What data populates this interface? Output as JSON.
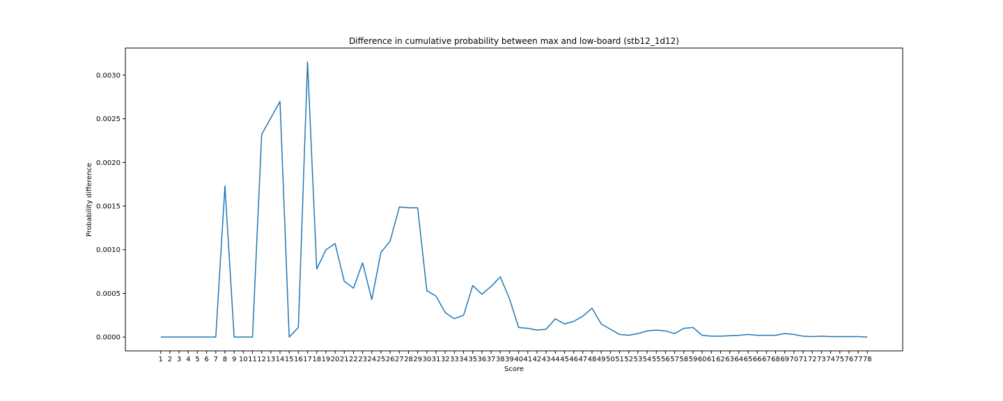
{
  "chart_data": {
    "type": "line",
    "title": "Difference in cumulative probability between max and low-board (stb12_1d12)",
    "xlabel": "Score",
    "ylabel": "Probability difference",
    "x": [
      1,
      2,
      3,
      4,
      5,
      6,
      7,
      8,
      9,
      10,
      11,
      12,
      13,
      14,
      15,
      16,
      17,
      18,
      19,
      20,
      21,
      22,
      23,
      24,
      25,
      26,
      27,
      28,
      29,
      30,
      31,
      32,
      33,
      34,
      35,
      36,
      37,
      38,
      39,
      40,
      41,
      42,
      43,
      44,
      45,
      46,
      47,
      48,
      49,
      50,
      51,
      52,
      53,
      54,
      55,
      56,
      57,
      58,
      59,
      60,
      61,
      62,
      63,
      64,
      65,
      66,
      67,
      68,
      69,
      70,
      71,
      72,
      73,
      74,
      75,
      76,
      77,
      78
    ],
    "series": [
      {
        "color": "#1f77b4",
        "values": [
          0,
          0,
          0,
          0,
          0,
          0,
          0,
          0.00173,
          0,
          0,
          0,
          0.00232,
          0.00251,
          0.0027,
          0,
          0.00011,
          0.00315,
          0.00078,
          0.001,
          0.00107,
          0.00064,
          0.00056,
          0.00085,
          0.00043,
          0.00097,
          0.0011,
          0.00149,
          0.00148,
          0.00148,
          0.00053,
          0.00047,
          0.00028,
          0.00021,
          0.00025,
          0.00059,
          0.00049,
          0.00058,
          0.00069,
          0.00044,
          0.00011,
          0.0001,
          8e-05,
          9e-05,
          0.00021,
          0.00015,
          0.00018,
          0.00024,
          0.00033,
          0.00015,
          9e-05,
          3e-05,
          2e-05,
          4e-05,
          7e-05,
          8e-05,
          7e-05,
          4e-05,
          0.0001,
          0.00011,
          2e-05,
          1e-05,
          1e-05,
          1.5e-05,
          2e-05,
          3e-05,
          2e-05,
          2e-05,
          2e-05,
          4e-05,
          3e-05,
          1e-05,
          5e-06,
          1e-05,
          5e-06,
          5e-06,
          5e-06,
          5e-06,
          0
        ]
      }
    ],
    "yticks": [
      "0.0000",
      "0.0005",
      "0.0010",
      "0.0015",
      "0.0020",
      "0.0025",
      "0.0030"
    ],
    "ytick_values": [
      0,
      0.0005,
      0.001,
      0.0015,
      0.002,
      0.0025,
      0.003
    ],
    "ylim": [
      -0.000158,
      0.00331
    ],
    "xlim": [
      -2.85,
      81.85
    ],
    "grid": false,
    "legend": "none"
  }
}
